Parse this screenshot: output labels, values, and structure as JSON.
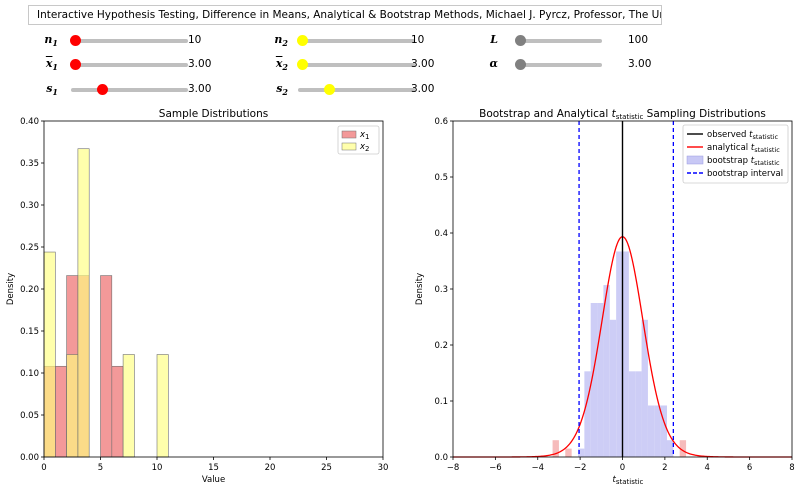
{
  "header": {
    "title": "Interactive Hypothesis Testing, Difference in Means, Analytical & Bootstrap Methods, Michael J. Pyrcz, Professor, The University of Texas at Austin"
  },
  "sliders": [
    {
      "id": "n1",
      "symbol": "n",
      "sub": "1",
      "overline": false,
      "value": "10",
      "level": 0.0,
      "color": "#ff0000"
    },
    {
      "id": "x1",
      "symbol": "x",
      "sub": "1",
      "overline": true,
      "value": "3.00",
      "level": 0.0,
      "color": "#ff0000"
    },
    {
      "id": "s1",
      "symbol": "s",
      "sub": "1",
      "overline": false,
      "value": "3.00",
      "level": 0.25,
      "color": "#ff0000"
    },
    {
      "id": "n2",
      "symbol": "n",
      "sub": "2",
      "overline": false,
      "value": "10",
      "level": 0.0,
      "color": "#ffff00"
    },
    {
      "id": "x2",
      "symbol": "x",
      "sub": "2",
      "overline": true,
      "value": "3.00",
      "level": 0.0,
      "color": "#ffff00"
    },
    {
      "id": "s2",
      "symbol": "s",
      "sub": "2",
      "overline": false,
      "value": "3.00",
      "level": 0.25,
      "color": "#ffff00"
    },
    {
      "id": "L",
      "symbol": "L",
      "sub": "",
      "overline": false,
      "value": "100",
      "level": 0.0,
      "color": "#808080"
    },
    {
      "id": "alpha",
      "symbol": "α",
      "sub": "",
      "overline": false,
      "value": "3.00",
      "level": 0.0,
      "color": "#808080"
    }
  ],
  "chart_data": [
    {
      "type": "bar",
      "title": "Sample Distributions",
      "xlabel": "Value",
      "ylabel": "Density",
      "xlim": [
        0,
        30
      ],
      "ylim": [
        0,
        0.4
      ],
      "xticks": [
        "0",
        "5",
        "10",
        "15",
        "20",
        "25",
        "30"
      ],
      "yticks": [
        "0.00",
        "0.05",
        "0.10",
        "0.15",
        "0.20",
        "0.25",
        "0.30",
        "0.35",
        "0.40"
      ],
      "legend_position": "top-right",
      "series": [
        {
          "name": "x",
          "sub": "1",
          "color": "#f08080",
          "bins": [
            [
              0,
              1,
              0.108
            ],
            [
              1,
              2,
              0.108
            ],
            [
              2,
              3,
              0.216
            ],
            [
              3,
              4,
              0.216
            ],
            [
              5,
              6,
              0.216
            ],
            [
              6,
              7,
              0.108
            ]
          ]
        },
        {
          "name": "x",
          "sub": "2",
          "color": "#ffff80",
          "bins": [
            [
              0,
              1,
              0.244
            ],
            [
              2,
              3,
              0.122
            ],
            [
              3,
              4,
              0.367
            ],
            [
              6,
              7,
              0.0
            ],
            [
              7,
              8,
              0.122
            ],
            [
              10,
              11,
              0.122
            ]
          ]
        }
      ]
    },
    {
      "type": "histogram",
      "title_prefix": "Bootstrap and Analytical ",
      "title_t": "t",
      "title_sub": "statistic",
      "title_suffix": " Sampling Distributions",
      "xlabel_t": "t",
      "xlabel_sub": "statistic",
      "ylabel": "Density",
      "xlim": [
        -8,
        8
      ],
      "ylim": [
        0,
        0.6
      ],
      "xticks": [
        "−8",
        "−6",
        "−4",
        "−2",
        "0",
        "2",
        "4",
        "6",
        "8"
      ],
      "yticks": [
        "0.0",
        "0.1",
        "0.2",
        "0.3",
        "0.4",
        "0.5",
        "0.6"
      ],
      "legend_position": "top-right",
      "legend": [
        {
          "label": "observed ",
          "t": "t",
          "sub": "statistic",
          "kind": "line",
          "color": "#000000"
        },
        {
          "label": "analytical ",
          "t": "t",
          "sub": "statistic",
          "kind": "line",
          "color": "#ff0000"
        },
        {
          "label": "bootstrap ",
          "t": "t",
          "sub": "statistic",
          "kind": "patch",
          "color": "#c8c8f5"
        },
        {
          "label": "bootstrap interval",
          "t": "",
          "sub": "",
          "kind": "dash",
          "color": "#0000ff"
        }
      ],
      "observed_t": 0.0,
      "interval": [
        -2.05,
        2.4
      ],
      "bin_width": 0.3,
      "bootstrap_bins": [
        [
          -3.3,
          0.03
        ],
        [
          -3.0,
          0.0
        ],
        [
          -2.7,
          0.015
        ],
        [
          -2.4,
          0.0
        ],
        [
          -2.1,
          0.015
        ],
        [
          -1.8,
          0.153
        ],
        [
          -1.5,
          0.275
        ],
        [
          -1.2,
          0.275
        ],
        [
          -0.9,
          0.307
        ],
        [
          -0.6,
          0.245
        ],
        [
          -0.3,
          0.367
        ],
        [
          0.0,
          0.367
        ],
        [
          0.3,
          0.153
        ],
        [
          0.6,
          0.153
        ],
        [
          0.9,
          0.245
        ],
        [
          1.2,
          0.092
        ],
        [
          1.5,
          0.092
        ],
        [
          1.8,
          0.092
        ],
        [
          2.1,
          0.03
        ],
        [
          2.4,
          0.0
        ],
        [
          2.7,
          0.03
        ]
      ]
    }
  ]
}
